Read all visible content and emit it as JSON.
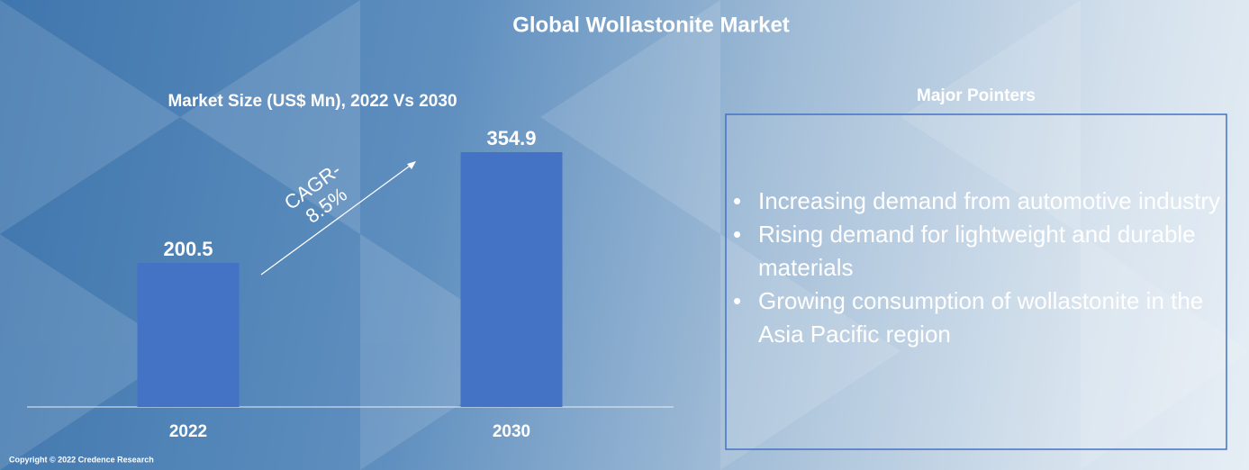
{
  "header": {
    "title": "Global Wollastonite Market"
  },
  "chart_data": {
    "type": "bar",
    "title": "Market Size (US$ Mn), 2022 Vs 2030",
    "categories": [
      "2022",
      "2030"
    ],
    "values": [
      200.5,
      354.9
    ],
    "color": "#4472c4",
    "annotation": [
      "CAGR-",
      "8.5%"
    ]
  },
  "pointers": {
    "title": "Major Pointers",
    "items": [
      "Increasing demand from automotive industry",
      "Rising demand for lightweight and durable materials",
      "Growing consumption of wollastonite in the Asia Pacific region"
    ]
  },
  "footer": {
    "copyright": "Copyright © 2022 Credence Research"
  }
}
